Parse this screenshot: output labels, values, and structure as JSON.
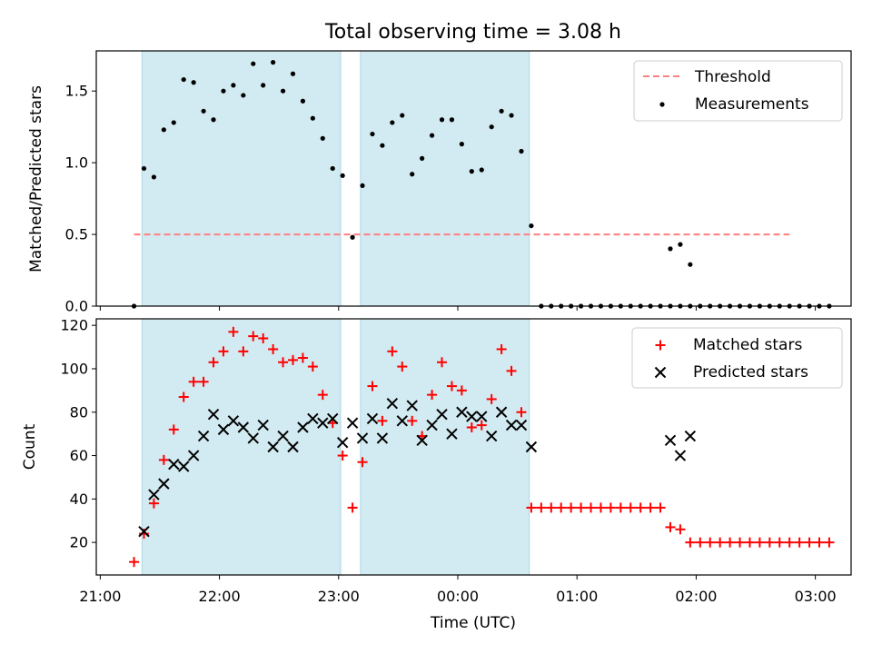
{
  "figure": {
    "title": "Total observing time = 3.08 h"
  },
  "colors": {
    "shade": "#add8e6",
    "threshold": "#ff7f7f",
    "measurement": "#000000",
    "matched": "#ff0000",
    "predicted": "#000000"
  },
  "chart_data": [
    {
      "type": "scatter",
      "title": "Total observing time = 3.08 h",
      "xlabel": "",
      "ylabel": "Matched/Predicted stars",
      "xlim": [
        "20:58",
        "03:18"
      ],
      "ylim": [
        0,
        1.78
      ],
      "x_ticks": [
        "21:00",
        "22:00",
        "23:00",
        "00:00",
        "01:00",
        "02:00",
        "03:00"
      ],
      "y_ticks": [
        "0.0",
        "0.5",
        "1.0",
        "1.5"
      ],
      "y_tick_values": [
        0,
        0.5,
        1.0,
        1.5
      ],
      "legend_position": "top-right",
      "shaded_intervals": [
        [
          "21:21",
          "23:01"
        ],
        [
          "23:11",
          "00:36"
        ]
      ],
      "threshold": {
        "name": "Threshold",
        "value": 0.5,
        "x_range": [
          "21:17",
          "02:47"
        ]
      },
      "series": [
        {
          "name": "Measurements",
          "x": [
            "21:17",
            "21:22",
            "21:27",
            "21:32",
            "21:37",
            "21:42",
            "21:47",
            "21:52",
            "21:57",
            "22:02",
            "22:07",
            "22:12",
            "22:17",
            "22:22",
            "22:27",
            "22:32",
            "22:37",
            "22:42",
            "22:47",
            "22:52",
            "22:57",
            "23:02",
            "23:07",
            "23:12",
            "23:17",
            "23:22",
            "23:27",
            "23:32",
            "23:37",
            "23:42",
            "23:47",
            "23:52",
            "23:57",
            "00:02",
            "00:07",
            "00:12",
            "00:17",
            "00:22",
            "00:27",
            "00:32",
            "00:37",
            "00:42",
            "00:47",
            "00:52",
            "00:57",
            "01:02",
            "01:07",
            "01:12",
            "01:17",
            "01:22",
            "01:27",
            "01:32",
            "01:37",
            "01:42",
            "01:47",
            "01:52",
            "01:57",
            "02:02",
            "02:07",
            "02:12",
            "02:17",
            "02:22",
            "02:27",
            "02:32",
            "02:37",
            "02:42",
            "02:47",
            "02:52",
            "02:57",
            "03:02",
            "03:07"
          ],
          "y": [
            0.0,
            0.96,
            0.9,
            1.23,
            1.28,
            1.58,
            1.56,
            1.36,
            1.3,
            1.5,
            1.54,
            1.47,
            1.69,
            1.54,
            1.7,
            1.5,
            1.62,
            1.43,
            1.31,
            1.17,
            0.96,
            0.91,
            0.48,
            0.84,
            1.2,
            1.12,
            1.28,
            1.33,
            0.92,
            1.03,
            1.19,
            1.3,
            1.3,
            1.13,
            0.94,
            0.95,
            1.25,
            1.36,
            1.33,
            1.08,
            0.56,
            0.0,
            0.0,
            0.0,
            0.0,
            0.0,
            0.0,
            0.0,
            0.0,
            0.0,
            0.0,
            0.0,
            0.0,
            0.0,
            0.0,
            0.0,
            0.0,
            0.0,
            0.0,
            0.0,
            0.0,
            0.0,
            0.0,
            0.0,
            0.0,
            0.0,
            0.0,
            0.0,
            0.0,
            0.0,
            0.0
          ]
        }
      ],
      "extra_points": {
        "x": [
          "01:47",
          "01:52",
          "01:57"
        ],
        "y": [
          0.4,
          0.43,
          0.29
        ]
      }
    },
    {
      "type": "scatter",
      "title": "",
      "xlabel": "Time (UTC)",
      "ylabel": "Count",
      "xlim": [
        "20:58",
        "03:18"
      ],
      "ylim": [
        5,
        123
      ],
      "x_ticks": [
        "21:00",
        "22:00",
        "23:00",
        "00:00",
        "01:00",
        "02:00",
        "03:00"
      ],
      "y_ticks": [
        "20",
        "40",
        "60",
        "80",
        "100",
        "120"
      ],
      "y_tick_values": [
        20,
        40,
        60,
        80,
        100,
        120
      ],
      "legend_position": "top-right",
      "shaded_intervals": [
        [
          "21:21",
          "23:01"
        ],
        [
          "23:11",
          "00:36"
        ]
      ],
      "series": [
        {
          "name": "Matched stars",
          "marker": "plus",
          "x": [
            "21:17",
            "21:22",
            "21:27",
            "21:32",
            "21:37",
            "21:42",
            "21:47",
            "21:52",
            "21:57",
            "22:02",
            "22:07",
            "22:12",
            "22:17",
            "22:22",
            "22:27",
            "22:32",
            "22:37",
            "22:42",
            "22:47",
            "22:52",
            "22:57",
            "23:02",
            "23:07",
            "23:12",
            "23:17",
            "23:22",
            "23:27",
            "23:32",
            "23:37",
            "23:42",
            "23:47",
            "23:52",
            "23:57",
            "00:02",
            "00:07",
            "00:12",
            "00:17",
            "00:22",
            "00:27",
            "00:32",
            "00:37",
            "00:42",
            "00:47",
            "00:52",
            "00:57",
            "01:02",
            "01:07",
            "01:12",
            "01:17",
            "01:22",
            "01:27",
            "01:32",
            "01:37",
            "01:42",
            "01:47",
            "01:52",
            "01:57",
            "02:02",
            "02:07",
            "02:12",
            "02:17",
            "02:22",
            "02:27",
            "02:32",
            "02:37",
            "02:42",
            "02:47",
            "02:52",
            "02:57",
            "03:02",
            "03:07"
          ],
          "y": [
            11,
            24,
            38,
            58,
            72,
            87,
            94,
            94,
            103,
            108,
            117,
            108,
            115,
            114,
            109,
            103,
            104,
            105,
            101,
            88,
            75,
            60,
            36,
            57,
            92,
            76,
            108,
            101,
            76,
            69,
            88,
            103,
            92,
            90,
            73,
            74,
            86,
            109,
            99,
            80,
            36,
            36,
            36,
            36,
            36,
            36,
            36,
            36,
            36,
            36,
            36,
            36,
            36,
            36,
            27,
            26,
            20,
            20,
            20,
            20,
            20,
            20,
            20,
            20,
            20,
            20,
            20,
            20,
            20,
            20,
            20
          ]
        },
        {
          "name": "Predicted stars",
          "marker": "x",
          "x": [
            "21:22",
            "21:27",
            "21:32",
            "21:37",
            "21:42",
            "21:47",
            "21:52",
            "21:57",
            "22:02",
            "22:07",
            "22:12",
            "22:17",
            "22:22",
            "22:27",
            "22:32",
            "22:37",
            "22:42",
            "22:47",
            "22:52",
            "22:57",
            "23:02",
            "23:07",
            "23:12",
            "23:17",
            "23:22",
            "23:27",
            "23:32",
            "23:37",
            "23:42",
            "23:47",
            "23:52",
            "23:57",
            "00:02",
            "00:07",
            "00:12",
            "00:17",
            "00:22",
            "00:27",
            "00:32",
            "00:37",
            "01:47",
            "01:52",
            "01:57"
          ],
          "y": [
            25,
            42,
            47,
            56,
            55,
            60,
            69,
            79,
            72,
            76,
            73,
            68,
            74,
            64,
            69,
            64,
            73,
            77,
            75,
            77,
            66,
            75,
            68,
            77,
            68,
            84,
            76,
            83,
            67,
            74,
            79,
            70,
            80,
            78,
            78,
            69,
            80,
            74,
            74,
            64,
            67,
            60,
            69
          ]
        }
      ]
    }
  ]
}
